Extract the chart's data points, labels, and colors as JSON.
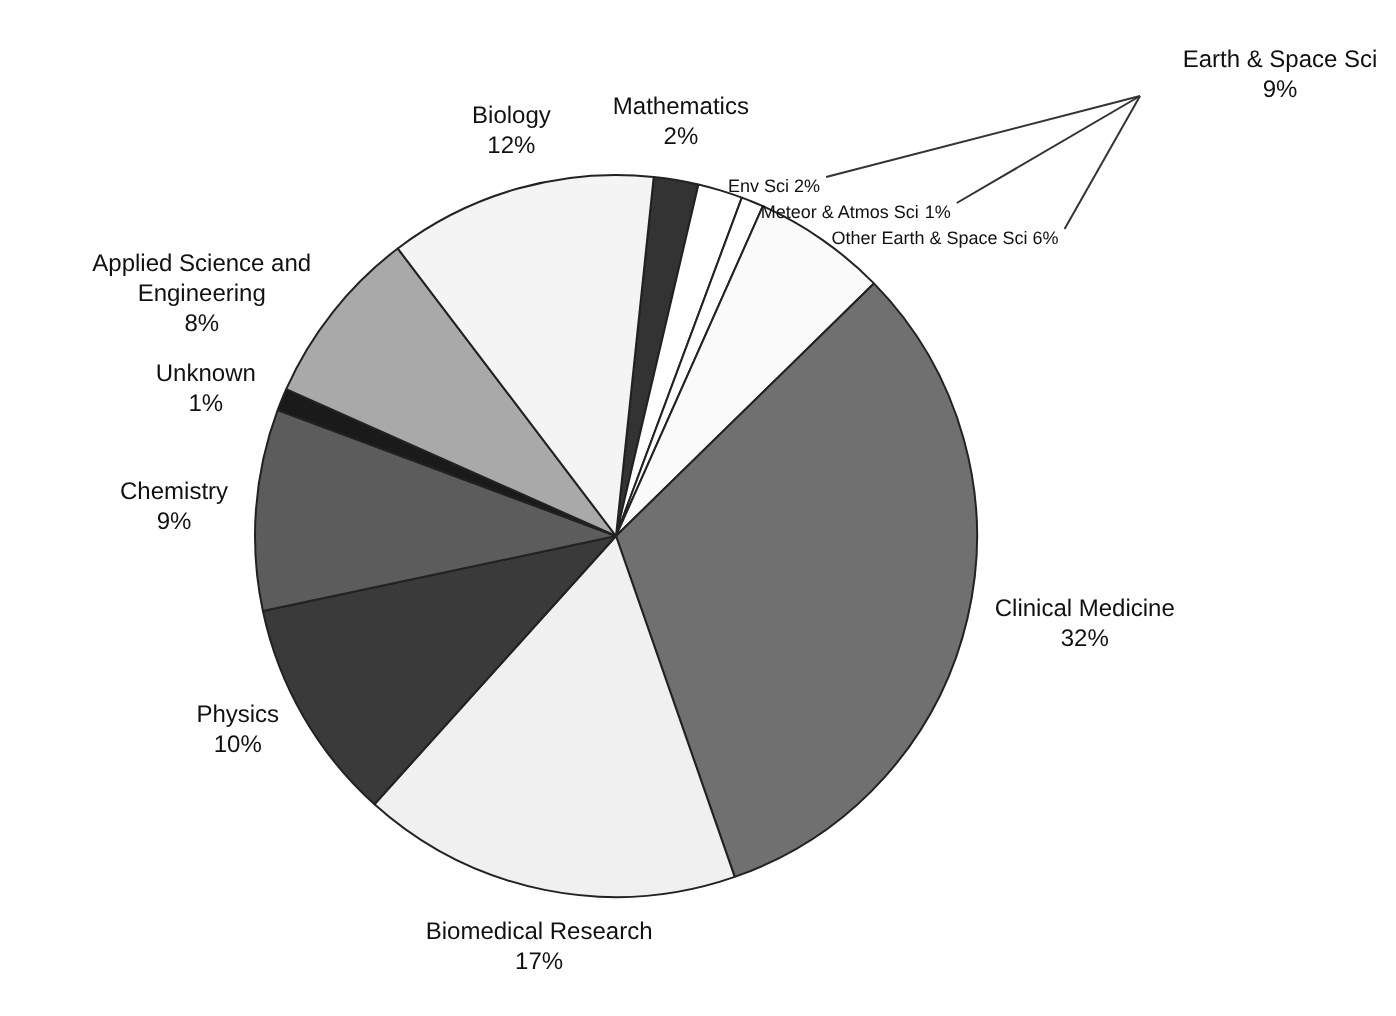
{
  "chart_data": {
    "type": "pie",
    "categories": [
      "Mathematics",
      "Env Sci",
      "Meteor & Atmos Sci",
      "Other Earth & Space Sci",
      "Clinical Medicine",
      "Biomedical Research",
      "Physics",
      "Chemistry",
      "Unknown",
      "Applied Science and Engineering",
      "Biology"
    ],
    "values": [
      2,
      2,
      1,
      6,
      32,
      17,
      10,
      9,
      1,
      8,
      12
    ],
    "colors": [
      "#333333",
      "#ffffff",
      "#ffffff",
      "#fafafa",
      "#707070",
      "#f0f0f0",
      "#3a3a3a",
      "#5c5c5c",
      "#1a1a1a",
      "#a9a9a9",
      "#f4f4f4"
    ],
    "value_labels": [
      "2%",
      "2%",
      "1%",
      "6%",
      "32%",
      "17%",
      "10%",
      "9%",
      "1%",
      "8%",
      "12%"
    ],
    "annotations": [
      "Earth & Space Sci 9%"
    ]
  }
}
